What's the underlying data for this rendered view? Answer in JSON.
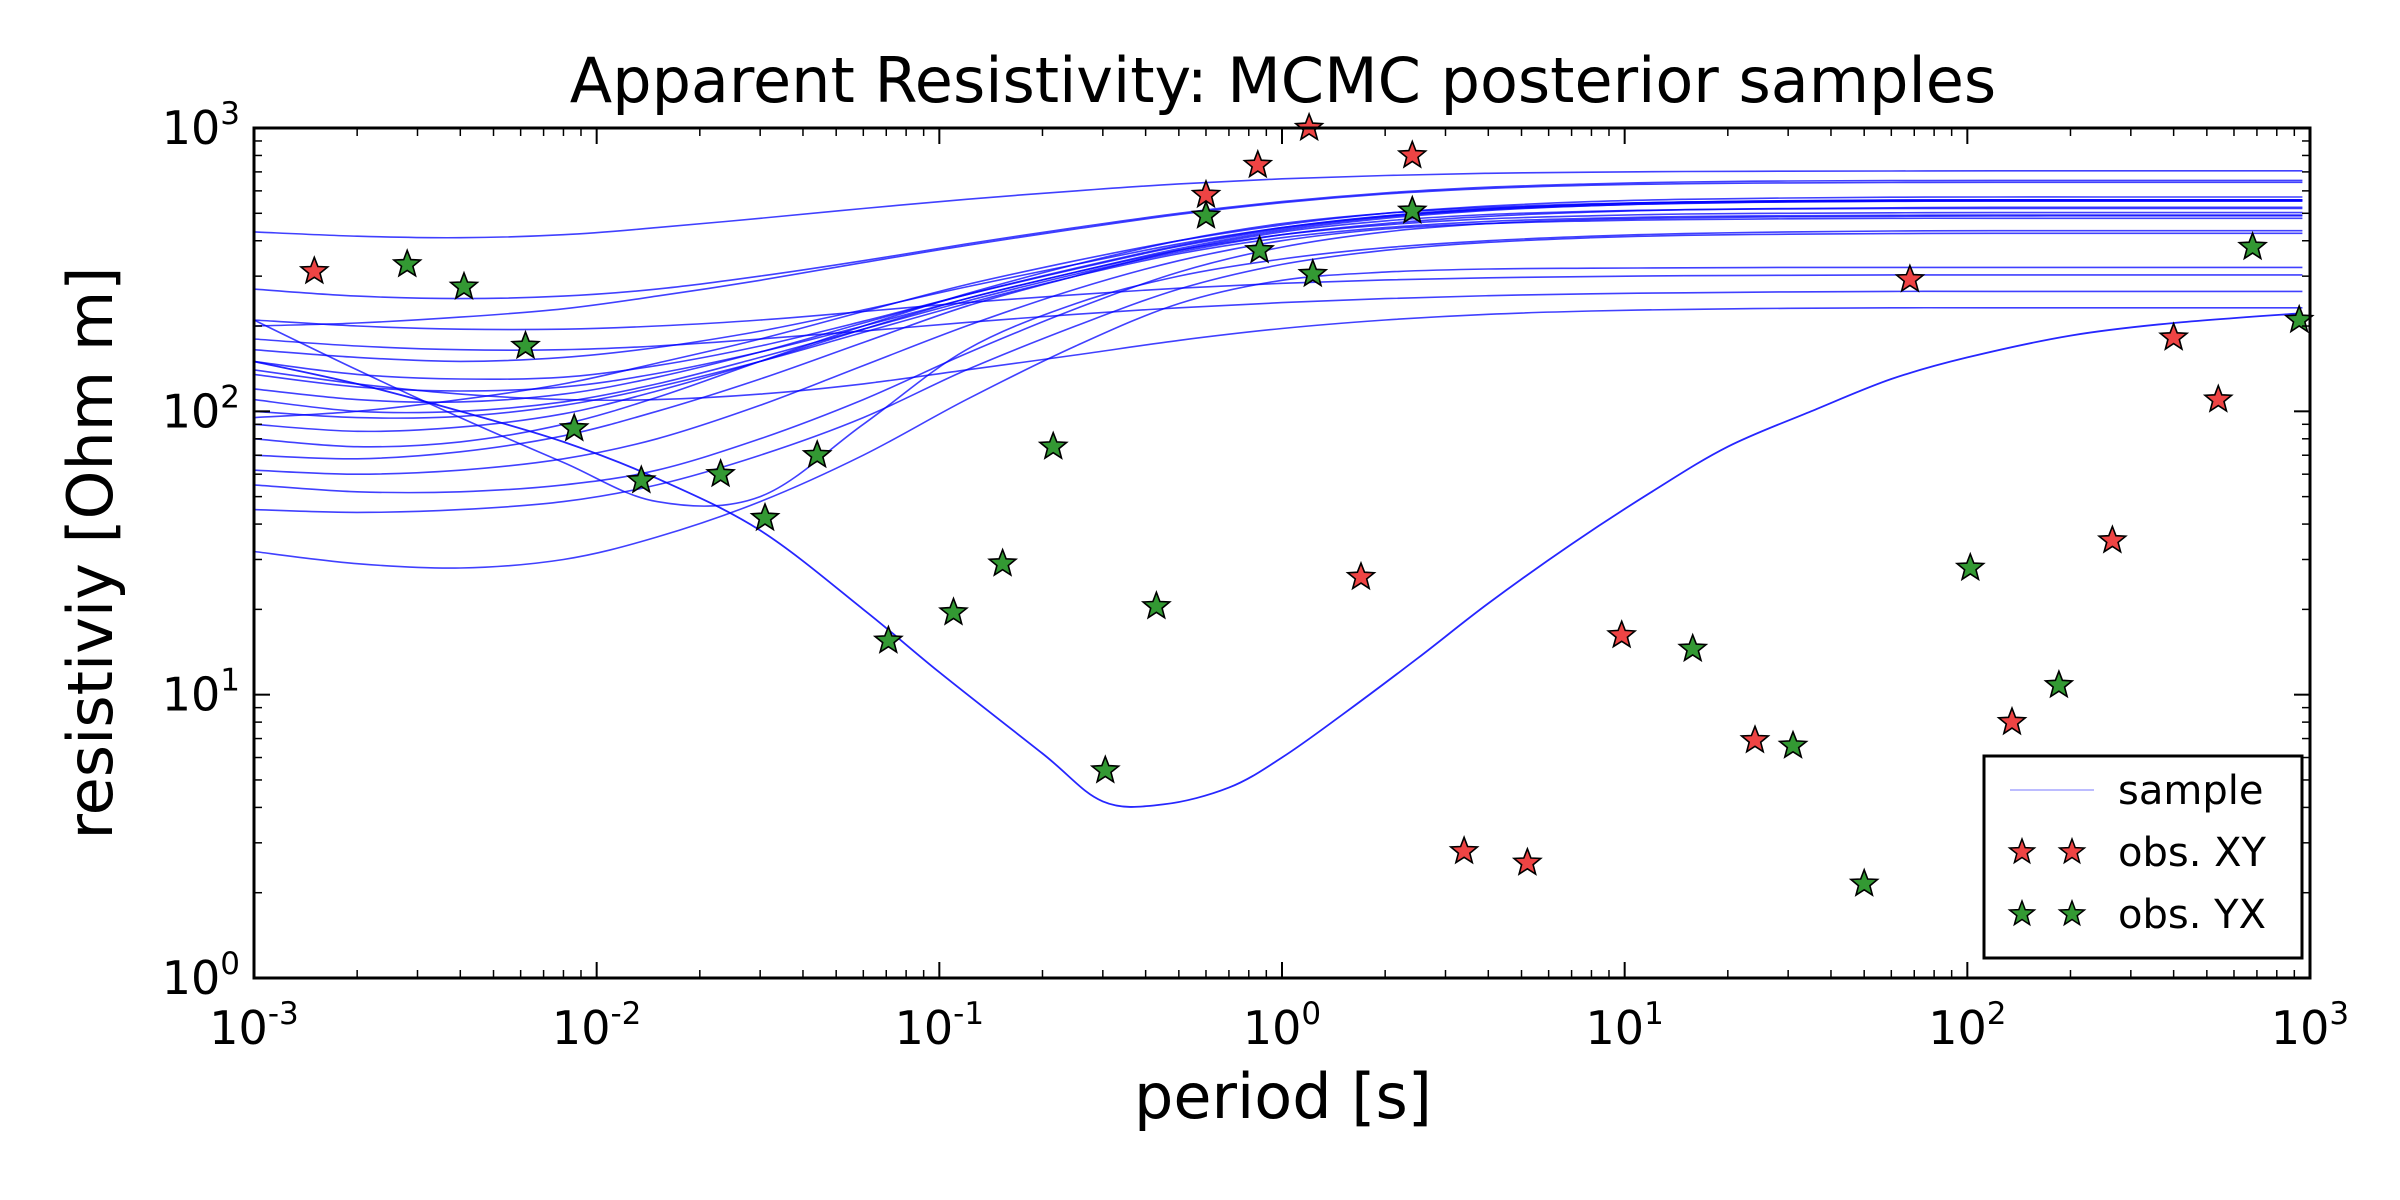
{
  "chart_data": {
    "type": "scatter",
    "title": "Apparent Resistivity: MCMC posterior samples",
    "xlabel": "period [s]",
    "ylabel": "resistiviy [Ohm m]",
    "xscale": "log",
    "yscale": "log",
    "xlim": [
      0.001,
      1000
    ],
    "ylim": [
      1,
      1000
    ],
    "xticks": [
      {
        "base": "10",
        "exp": "-3",
        "value": 0.001
      },
      {
        "base": "10",
        "exp": "-2",
        "value": 0.01
      },
      {
        "base": "10",
        "exp": "-1",
        "value": 0.1
      },
      {
        "base": "10",
        "exp": "0",
        "value": 1
      },
      {
        "base": "10",
        "exp": "1",
        "value": 10
      },
      {
        "base": "10",
        "exp": "2",
        "value": 100
      },
      {
        "base": "10",
        "exp": "3",
        "value": 1000
      }
    ],
    "yticks": [
      {
        "base": "10",
        "exp": "0",
        "value": 1
      },
      {
        "base": "10",
        "exp": "1",
        "value": 10
      },
      {
        "base": "10",
        "exp": "2",
        "value": 100
      },
      {
        "base": "10",
        "exp": "3",
        "value": 1000
      }
    ],
    "grid": false,
    "legend": {
      "placement": "lower-right",
      "entries": [
        {
          "label": "sample",
          "kind": "line",
          "color": "#0000ff"
        },
        {
          "label": "obs. XY",
          "kind": "star",
          "color": "#ee4444"
        },
        {
          "label": "obs. YX",
          "kind": "star",
          "color": "#339933"
        }
      ]
    },
    "colors": {
      "sample": "#0000ff",
      "xy": "#ee4444",
      "yx": "#339933",
      "edge": "#000000"
    },
    "series": [
      {
        "name": "obs. XY",
        "x": [
          0.0015,
          0.6,
          0.85,
          1.2,
          1.7,
          2.4,
          3.4,
          5.2,
          9.8,
          24,
          68,
          135,
          265,
          400,
          540
        ],
        "y": [
          312,
          580,
          740,
          1000,
          26,
          800,
          2.8,
          2.55,
          16.2,
          6.9,
          292,
          8,
          35,
          182,
          110
        ]
      },
      {
        "name": "obs. YX",
        "x": [
          0.0028,
          0.0041,
          0.0062,
          0.0086,
          0.0135,
          0.023,
          0.031,
          0.044,
          0.071,
          0.11,
          0.153,
          0.215,
          0.305,
          0.43,
          0.6,
          0.86,
          1.23,
          2.4,
          15.8,
          31,
          50,
          102,
          185,
          680,
          930
        ],
        "y": [
          330,
          275,
          170,
          87,
          57,
          60,
          42,
          70,
          15.5,
          19.5,
          29,
          75,
          5.4,
          20.5,
          490,
          370,
          305,
          510,
          14.5,
          6.6,
          2.15,
          28,
          10.8,
          380,
          210
        ]
      }
    ],
    "samples": {
      "x": [
        0.001,
        0.002,
        0.004,
        0.008,
        0.015,
        0.03,
        0.06,
        0.12,
        0.25,
        0.5,
        1,
        2,
        4,
        8,
        15,
        30,
        60,
        120,
        250,
        500,
        950
      ],
      "curves": [
        [
          32,
          29,
          28,
          30,
          36,
          48,
          70,
          110,
          170,
          240,
          290,
          310,
          318,
          320,
          321,
          322,
          322,
          322,
          322,
          322,
          322
        ],
        [
          45,
          44,
          45,
          48,
          55,
          70,
          95,
          140,
          200,
          270,
          330,
          370,
          395,
          410,
          418,
          422,
          424,
          425,
          425,
          425,
          425
        ],
        [
          55,
          52,
          52,
          55,
          62,
          80,
          110,
          160,
          230,
          310,
          380,
          430,
          460,
          475,
          482,
          486,
          488,
          489,
          490,
          490,
          490
        ],
        [
          62,
          60,
          62,
          68,
          80,
          105,
          145,
          200,
          270,
          340,
          400,
          440,
          460,
          470,
          475,
          478,
          480,
          480,
          480,
          480,
          480
        ],
        [
          70,
          68,
          72,
          82,
          100,
          130,
          175,
          235,
          300,
          370,
          430,
          470,
          495,
          508,
          515,
          518,
          520,
          520,
          520,
          520,
          520
        ],
        [
          80,
          75,
          78,
          90,
          112,
          150,
          200,
          260,
          330,
          400,
          460,
          500,
          525,
          540,
          548,
          552,
          555,
          555,
          555,
          555,
          555
        ],
        [
          90,
          85,
          88,
          98,
          118,
          150,
          195,
          250,
          310,
          370,
          420,
          455,
          478,
          490,
          497,
          500,
          502,
          503,
          503,
          503,
          503
        ],
        [
          100,
          95,
          96,
          105,
          122,
          150,
          190,
          240,
          300,
          360,
          410,
          445,
          468,
          480,
          487,
          490,
          492,
          493,
          493,
          493,
          493
        ],
        [
          110,
          100,
          100,
          108,
          125,
          155,
          195,
          245,
          305,
          365,
          420,
          460,
          488,
          505,
          515,
          520,
          523,
          525,
          525,
          525,
          525
        ],
        [
          120,
          110,
          108,
          115,
          132,
          162,
          205,
          258,
          320,
          385,
          445,
          490,
          520,
          538,
          548,
          553,
          556,
          558,
          558,
          558,
          558
        ],
        [
          135,
          122,
          118,
          122,
          136,
          162,
          200,
          250,
          310,
          375,
          435,
          480,
          512,
          532,
          543,
          549,
          552,
          553,
          553,
          553,
          553
        ],
        [
          150,
          135,
          130,
          132,
          145,
          170,
          208,
          258,
          318,
          382,
          440,
          485,
          515,
          532,
          542,
          548,
          551,
          552,
          552,
          552,
          552
        ],
        [
          165,
          155,
          150,
          155,
          168,
          192,
          228,
          275,
          330,
          390,
          445,
          488,
          518,
          537,
          548,
          554,
          557,
          558,
          558,
          558,
          558
        ],
        [
          95,
          100,
          110,
          125,
          148,
          180,
          225,
          280,
          340,
          400,
          455,
          500,
          530,
          550,
          560,
          566,
          570,
          571,
          571,
          571,
          571
        ],
        [
          200,
          205,
          215,
          230,
          255,
          290,
          335,
          385,
          440,
          495,
          545,
          585,
          612,
          628,
          636,
          640,
          642,
          643,
          643,
          643,
          643
        ],
        [
          270,
          255,
          250,
          255,
          270,
          300,
          340,
          390,
          445,
          500,
          550,
          590,
          618,
          635,
          645,
          650,
          652,
          653,
          653,
          653,
          653
        ],
        [
          430,
          415,
          410,
          420,
          445,
          480,
          520,
          560,
          600,
          635,
          662,
          680,
          692,
          698,
          702,
          704,
          705,
          706,
          706,
          706,
          706
        ],
        [
          180,
          170,
          165,
          165,
          170,
          180,
          192,
          206,
          220,
          232,
          242,
          250,
          256,
          260,
          262,
          264,
          265,
          265,
          265,
          265,
          265
        ],
        [
          210,
          200,
          195,
          195,
          200,
          210,
          225,
          242,
          258,
          272,
          283,
          291,
          296,
          299,
          301,
          302,
          303,
          303,
          303,
          303,
          303
        ],
        [
          140,
          125,
          115,
          110,
          110,
          115,
          125,
          140,
          158,
          178,
          196,
          210,
          220,
          226,
          229,
          231,
          232,
          232,
          232,
          232,
          232
        ],
        [
          210,
          140,
          95,
          66,
          48,
          50,
          90,
          165,
          240,
          300,
          345,
          378,
          400,
          415,
          424,
          430,
          433,
          434,
          434,
          434,
          434
        ]
      ],
      "dip_curve": {
        "x": [
          0.001,
          0.002,
          0.004,
          0.008,
          0.015,
          0.03,
          0.06,
          0.1,
          0.2,
          0.3,
          0.45,
          0.7,
          1,
          1.5,
          2.5,
          4,
          7,
          12,
          20,
          35,
          60,
          100,
          200,
          400,
          950
        ],
        "y": [
          150,
          125,
          100,
          78,
          58,
          38,
          20,
          12,
          6.2,
          4.2,
          4.1,
          4.7,
          6,
          8.5,
          13.5,
          21,
          34,
          52,
          75,
          100,
          130,
          155,
          185,
          205,
          222
        ]
      }
    }
  }
}
